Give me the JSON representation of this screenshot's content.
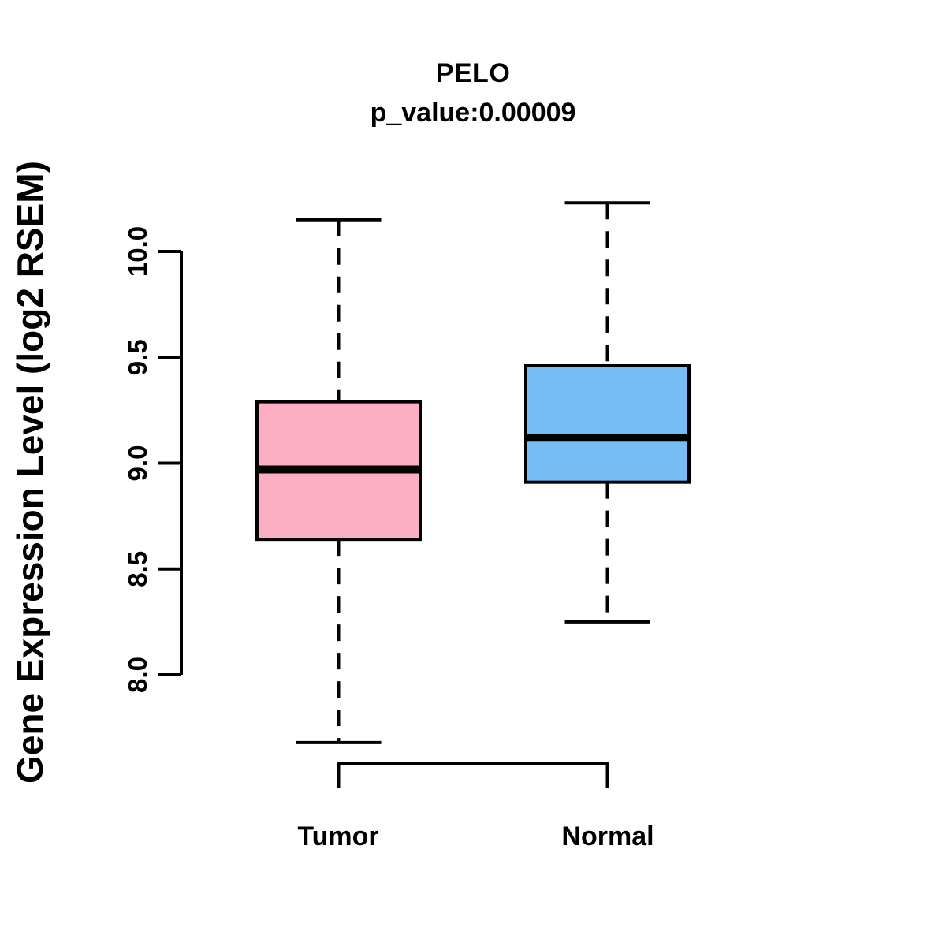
{
  "chart_data": {
    "type": "boxplot",
    "title": "PELO",
    "subtitle": "p_value:0.00009",
    "ylabel": "Gene Expression Level (log2 RSEM)",
    "xlabel": "",
    "ylim": [
      7.55,
      10.35
    ],
    "yticks": [
      8.0,
      8.5,
      9.0,
      9.5,
      10.0
    ],
    "grid": "off",
    "legend": "none",
    "categories": [
      "Tumor",
      "Normal"
    ],
    "groups": [
      {
        "name": "Tumor",
        "fill_color": "#FCAFC2",
        "whisker_low": 7.68,
        "q1": 8.64,
        "median": 8.97,
        "q3": 9.29,
        "whisker_high": 10.15
      },
      {
        "name": "Normal",
        "fill_color": "#74BEF5",
        "whisker_low": 8.25,
        "q1": 8.91,
        "median": 9.12,
        "q3": 9.46,
        "whisker_high": 10.23
      }
    ],
    "box_border_color": "#000000",
    "median_color": "#000000",
    "axis_color": "#000000"
  }
}
